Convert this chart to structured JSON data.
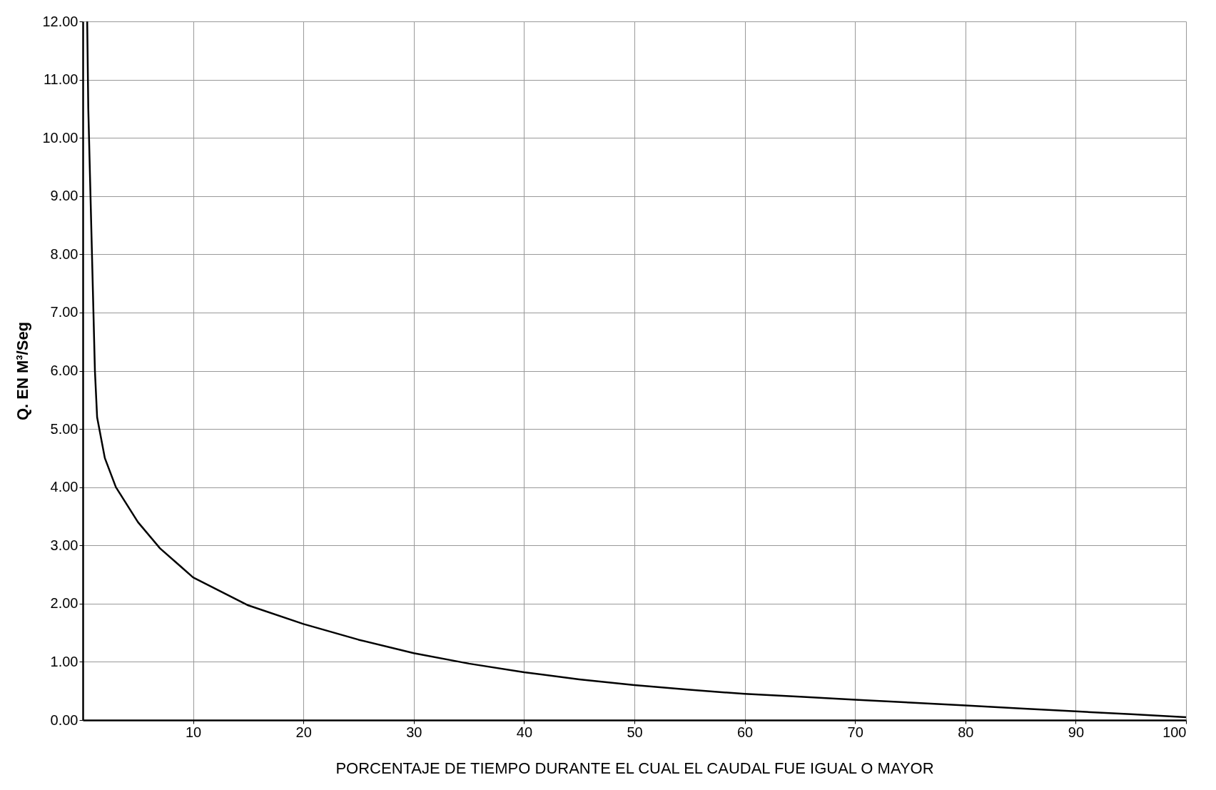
{
  "chart_data": {
    "type": "line",
    "xlabel": "PORCENTAJE DE  TIEMPO DURANTE EL CUAL  EL CAUDAL FUE IGUAL O MAYOR",
    "ylabel": "Q. EN M³/Seg",
    "x": [
      0.4,
      0.5,
      0.7,
      0.9,
      1.1,
      1.3,
      2,
      3,
      5,
      7,
      10,
      15,
      20,
      25,
      30,
      35,
      40,
      45,
      50,
      55,
      60,
      65,
      70,
      75,
      80,
      85,
      90,
      95,
      100
    ],
    "series": [
      {
        "color": "#000000",
        "values": [
          12,
          10.5,
          9,
          7.5,
          6,
          5.2,
          4.5,
          4.0,
          3.4,
          2.95,
          2.45,
          1.97,
          1.65,
          1.38,
          1.15,
          0.97,
          0.82,
          0.7,
          0.6,
          0.52,
          0.45,
          0.4,
          0.35,
          0.3,
          0.25,
          0.2,
          0.15,
          0.1,
          0.05
        ]
      }
    ],
    "xlim": [
      0,
      100
    ],
    "xticks": [
      10,
      20,
      30,
      40,
      50,
      60,
      70,
      80,
      90,
      100
    ],
    "ylim": [
      0,
      12
    ],
    "yticks": [
      {
        "value": 0,
        "label": "0.00"
      },
      {
        "value": 1,
        "label": "1.00"
      },
      {
        "value": 2,
        "label": "2.00"
      },
      {
        "value": 3,
        "label": "3.00"
      },
      {
        "value": 4,
        "label": "4.00"
      },
      {
        "value": 5,
        "label": "5.00"
      },
      {
        "value": 6,
        "label": "6.00"
      },
      {
        "value": 7,
        "label": "7.00"
      },
      {
        "value": 8,
        "label": "8.00"
      },
      {
        "value": 9,
        "label": "9.00"
      },
      {
        "value": 10,
        "label": "10.00"
      },
      {
        "value": 11,
        "label": "11.00"
      },
      {
        "value": 12,
        "label": "12.00"
      }
    ],
    "grid": true,
    "marker": "none",
    "line_style": "solid"
  }
}
